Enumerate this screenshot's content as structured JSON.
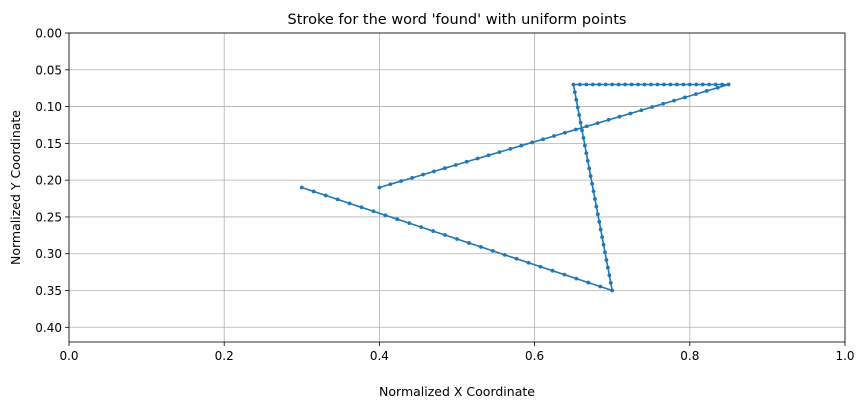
{
  "chart_data": {
    "type": "line",
    "title": "Stroke for the word 'found' with uniform points",
    "xlabel": "Normalized X Coordinate",
    "ylabel": "Normalized Y Coordinate",
    "xlim": [
      0.0,
      1.0
    ],
    "ylim": [
      0.42,
      0.0
    ],
    "y_inverted": true,
    "grid": true,
    "legend": "none",
    "x_ticks": [
      "0.0",
      "0.2",
      "0.4",
      "0.6",
      "0.8",
      "1.0"
    ],
    "y_ticks": [
      "0.00",
      "0.05",
      "0.10",
      "0.15",
      "0.20",
      "0.25",
      "0.30",
      "0.35",
      "0.40"
    ],
    "series": [
      {
        "color": "#1f77b4",
        "marker": "circle",
        "vertices": [
          {
            "x": 0.3,
            "y": 0.21
          },
          {
            "x": 0.7,
            "y": 0.35
          },
          {
            "x": 0.65,
            "y": 0.07
          },
          {
            "x": 0.85,
            "y": 0.07
          },
          {
            "x": 0.4,
            "y": 0.21
          }
        ],
        "segment_point_counts": [
          26,
          27,
          24,
          32
        ]
      }
    ]
  }
}
